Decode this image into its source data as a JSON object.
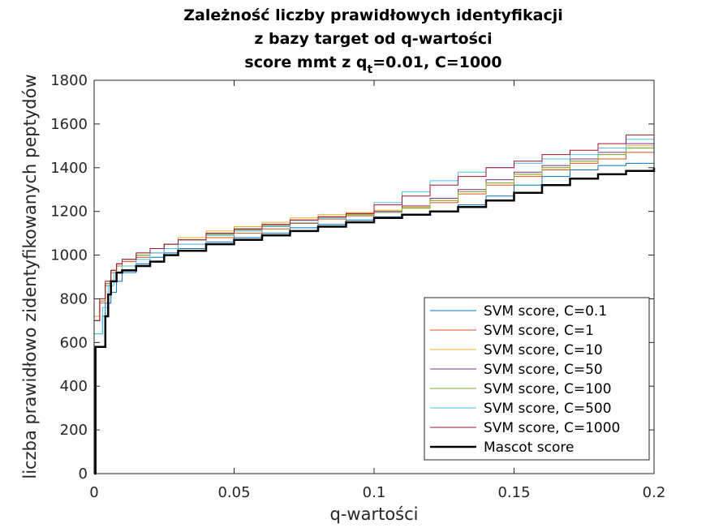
{
  "chart_data": {
    "type": "line",
    "title_lines": [
      "Zależność liczby prawidłowych identyfikacji",
      "z bazy target od q-wartości"
    ],
    "subtitle": {
      "pre": "score mmt z q",
      "sub": "t",
      "post": "=0.01, C=1000"
    },
    "xlabel": "q-wartości",
    "ylabel": "liczba prawidłowo zidentyfikowanych peptydów",
    "xlim": [
      0,
      0.2
    ],
    "ylim": [
      0,
      1800
    ],
    "xticks": [
      0,
      0.05,
      0.1,
      0.15,
      0.2
    ],
    "xtick_labels": [
      "0",
      "0.05",
      "0.1",
      "0.15",
      "0.2"
    ],
    "yticks": [
      0,
      200,
      400,
      600,
      800,
      1000,
      1200,
      1400,
      1600,
      1800
    ],
    "ytick_labels": [
      "0",
      "200",
      "400",
      "600",
      "800",
      "1000",
      "1200",
      "1400",
      "1600",
      "1800"
    ],
    "grid": false,
    "legend_position": "bottom-right",
    "series": [
      {
        "name": "SVM score, C=0.1",
        "color": "#0072BD",
        "width": 1,
        "points": [
          [
            0,
            640
          ],
          [
            0.003,
            720
          ],
          [
            0.004,
            780
          ],
          [
            0.006,
            830
          ],
          [
            0.008,
            880
          ],
          [
            0.01,
            920
          ],
          [
            0.015,
            960
          ],
          [
            0.02,
            990
          ],
          [
            0.025,
            1010
          ],
          [
            0.03,
            1030
          ],
          [
            0.04,
            1060
          ],
          [
            0.05,
            1080
          ],
          [
            0.06,
            1100
          ],
          [
            0.07,
            1125
          ],
          [
            0.08,
            1140
          ],
          [
            0.09,
            1160
          ],
          [
            0.1,
            1175
          ],
          [
            0.11,
            1185
          ],
          [
            0.12,
            1200
          ],
          [
            0.13,
            1230
          ],
          [
            0.14,
            1270
          ],
          [
            0.15,
            1320
          ],
          [
            0.16,
            1360
          ],
          [
            0.17,
            1390
          ],
          [
            0.18,
            1410
          ],
          [
            0.19,
            1420
          ],
          [
            0.2,
            1440
          ]
        ]
      },
      {
        "name": "SVM score, C=1",
        "color": "#D95319",
        "width": 1,
        "points": [
          [
            0,
            700
          ],
          [
            0.002,
            780
          ],
          [
            0.004,
            860
          ],
          [
            0.006,
            920
          ],
          [
            0.008,
            950
          ],
          [
            0.01,
            970
          ],
          [
            0.015,
            990
          ],
          [
            0.02,
            1010
          ],
          [
            0.025,
            1030
          ],
          [
            0.03,
            1050
          ],
          [
            0.04,
            1080
          ],
          [
            0.05,
            1100
          ],
          [
            0.06,
            1120
          ],
          [
            0.07,
            1145
          ],
          [
            0.08,
            1165
          ],
          [
            0.09,
            1180
          ],
          [
            0.1,
            1195
          ],
          [
            0.11,
            1215
          ],
          [
            0.12,
            1240
          ],
          [
            0.13,
            1280
          ],
          [
            0.14,
            1320
          ],
          [
            0.15,
            1360
          ],
          [
            0.16,
            1390
          ],
          [
            0.17,
            1420
          ],
          [
            0.18,
            1440
          ],
          [
            0.19,
            1470
          ],
          [
            0.2,
            1520
          ]
        ]
      },
      {
        "name": "SVM score, C=10",
        "color": "#EDB120",
        "width": 1,
        "points": [
          [
            0,
            720
          ],
          [
            0.002,
            800
          ],
          [
            0.004,
            880
          ],
          [
            0.006,
            930
          ],
          [
            0.008,
            960
          ],
          [
            0.01,
            980
          ],
          [
            0.015,
            1010
          ],
          [
            0.02,
            1030
          ],
          [
            0.025,
            1050
          ],
          [
            0.03,
            1080
          ],
          [
            0.04,
            1110
          ],
          [
            0.05,
            1130
          ],
          [
            0.06,
            1150
          ],
          [
            0.07,
            1170
          ],
          [
            0.08,
            1185
          ],
          [
            0.09,
            1195
          ],
          [
            0.1,
            1205
          ],
          [
            0.11,
            1220
          ],
          [
            0.12,
            1250
          ],
          [
            0.13,
            1290
          ],
          [
            0.14,
            1330
          ],
          [
            0.15,
            1370
          ],
          [
            0.16,
            1400
          ],
          [
            0.17,
            1430
          ],
          [
            0.18,
            1460
          ],
          [
            0.19,
            1500
          ],
          [
            0.2,
            1600
          ]
        ]
      },
      {
        "name": "SVM score, C=50",
        "color": "#7E2F8E",
        "width": 1,
        "points": [
          [
            0,
            700
          ],
          [
            0.002,
            790
          ],
          [
            0.004,
            870
          ],
          [
            0.006,
            930
          ],
          [
            0.008,
            960
          ],
          [
            0.01,
            980
          ],
          [
            0.015,
            1000
          ],
          [
            0.02,
            1030
          ],
          [
            0.025,
            1050
          ],
          [
            0.03,
            1070
          ],
          [
            0.04,
            1100
          ],
          [
            0.05,
            1120
          ],
          [
            0.06,
            1140
          ],
          [
            0.07,
            1160
          ],
          [
            0.08,
            1175
          ],
          [
            0.09,
            1190
          ],
          [
            0.1,
            1200
          ],
          [
            0.11,
            1225
          ],
          [
            0.12,
            1260
          ],
          [
            0.13,
            1300
          ],
          [
            0.14,
            1345
          ],
          [
            0.15,
            1380
          ],
          [
            0.16,
            1410
          ],
          [
            0.17,
            1440
          ],
          [
            0.18,
            1470
          ],
          [
            0.19,
            1510
          ],
          [
            0.2,
            1560
          ]
        ]
      },
      {
        "name": "SVM score, C=100",
        "color": "#77AC30",
        "width": 1,
        "points": [
          [
            0,
            700
          ],
          [
            0.002,
            790
          ],
          [
            0.004,
            870
          ],
          [
            0.006,
            930
          ],
          [
            0.008,
            960
          ],
          [
            0.01,
            980
          ],
          [
            0.015,
            1000
          ],
          [
            0.02,
            1030
          ],
          [
            0.025,
            1050
          ],
          [
            0.03,
            1070
          ],
          [
            0.04,
            1095
          ],
          [
            0.05,
            1115
          ],
          [
            0.06,
            1135
          ],
          [
            0.07,
            1160
          ],
          [
            0.08,
            1175
          ],
          [
            0.09,
            1185
          ],
          [
            0.1,
            1195
          ],
          [
            0.11,
            1215
          ],
          [
            0.12,
            1250
          ],
          [
            0.13,
            1290
          ],
          [
            0.14,
            1330
          ],
          [
            0.15,
            1370
          ],
          [
            0.16,
            1400
          ],
          [
            0.17,
            1430
          ],
          [
            0.18,
            1460
          ],
          [
            0.19,
            1490
          ],
          [
            0.2,
            1540
          ]
        ]
      },
      {
        "name": "SVM score, C=500",
        "color": "#4DBEEE",
        "width": 1,
        "points": [
          [
            0,
            640
          ],
          [
            0.003,
            760
          ],
          [
            0.005,
            860
          ],
          [
            0.007,
            920
          ],
          [
            0.01,
            950
          ],
          [
            0.015,
            980
          ],
          [
            0.02,
            1010
          ],
          [
            0.025,
            1030
          ],
          [
            0.03,
            1050
          ],
          [
            0.04,
            1090
          ],
          [
            0.05,
            1110
          ],
          [
            0.06,
            1130
          ],
          [
            0.07,
            1150
          ],
          [
            0.08,
            1170
          ],
          [
            0.09,
            1190
          ],
          [
            0.1,
            1240
          ],
          [
            0.11,
            1290
          ],
          [
            0.12,
            1340
          ],
          [
            0.13,
            1380
          ],
          [
            0.14,
            1400
          ],
          [
            0.15,
            1420
          ],
          [
            0.16,
            1440
          ],
          [
            0.17,
            1460
          ],
          [
            0.18,
            1490
          ],
          [
            0.19,
            1530
          ],
          [
            0.2,
            1580
          ]
        ]
      },
      {
        "name": "SVM score, C=1000",
        "color": "#A2142F",
        "width": 1,
        "points": [
          [
            0,
            700
          ],
          [
            0.002,
            800
          ],
          [
            0.004,
            880
          ],
          [
            0.006,
            930
          ],
          [
            0.008,
            960
          ],
          [
            0.01,
            980
          ],
          [
            0.015,
            1010
          ],
          [
            0.02,
            1030
          ],
          [
            0.025,
            1050
          ],
          [
            0.03,
            1070
          ],
          [
            0.04,
            1100
          ],
          [
            0.05,
            1120
          ],
          [
            0.06,
            1140
          ],
          [
            0.07,
            1160
          ],
          [
            0.08,
            1175
          ],
          [
            0.09,
            1190
          ],
          [
            0.1,
            1230
          ],
          [
            0.11,
            1270
          ],
          [
            0.12,
            1320
          ],
          [
            0.13,
            1360
          ],
          [
            0.14,
            1400
          ],
          [
            0.15,
            1430
          ],
          [
            0.16,
            1460
          ],
          [
            0.17,
            1480
          ],
          [
            0.18,
            1510
          ],
          [
            0.19,
            1550
          ],
          [
            0.2,
            1600
          ]
        ]
      },
      {
        "name": "Mascot score",
        "color": "#000000",
        "width": 2.5,
        "points": [
          [
            0,
            0
          ],
          [
            0.0005,
            580
          ],
          [
            0.003,
            580
          ],
          [
            0.004,
            720
          ],
          [
            0.005,
            820
          ],
          [
            0.006,
            880
          ],
          [
            0.008,
            920
          ],
          [
            0.01,
            930
          ],
          [
            0.015,
            950
          ],
          [
            0.02,
            970
          ],
          [
            0.025,
            1000
          ],
          [
            0.03,
            1020
          ],
          [
            0.04,
            1050
          ],
          [
            0.05,
            1070
          ],
          [
            0.06,
            1090
          ],
          [
            0.07,
            1110
          ],
          [
            0.08,
            1130
          ],
          [
            0.09,
            1150
          ],
          [
            0.1,
            1170
          ],
          [
            0.11,
            1185
          ],
          [
            0.12,
            1200
          ],
          [
            0.13,
            1220
          ],
          [
            0.14,
            1250
          ],
          [
            0.15,
            1285
          ],
          [
            0.16,
            1320
          ],
          [
            0.17,
            1350
          ],
          [
            0.18,
            1370
          ],
          [
            0.19,
            1385
          ],
          [
            0.2,
            1400
          ]
        ]
      }
    ]
  }
}
